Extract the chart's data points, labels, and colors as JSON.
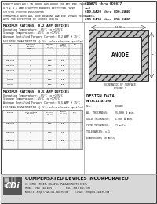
{
  "bg_color": "#ffffff",
  "border_color": "#444444",
  "title_lines": [
    "DIRECT AVAILABLE IN A0808 AND A0808 FOR MIL-PRF-19500/495",
    "0.2 & 0.5 AMP SCHOTTKY BARRIER RECTIFIER CHIPS",
    "SILICON DIOXIDE PASSIVATED",
    "COMPATIBLE WITH ALL WIRE BONDING AND DIE ATTACH TECHNIQUES,",
    "WITH THE EXCEPTION OF SOLDER REFLOW"
  ],
  "right_header_lines": [
    "CD0875 thru CD0877",
    "and",
    "CD0.5A20 thru CD0.2A40",
    "and",
    "CD0.5A20 thru CD0.5A40"
  ],
  "section1_title": "MAXIMUM RATINGS, 0.2 AMP DEVICES",
  "section1_lines": [
    "Operating Temperature: -65°C to +125°C",
    "Storage Temperature: -65°C to +175°C",
    "Average Rectified Forward Current: 0.2 AMP @ 75°C"
  ],
  "table1_header": "ELECTRICAL CHARACTERISTICS (@ 25°C, unless otherwise specified)",
  "section2_title": "MAXIMUM RATINGS, 0.5 AMP DEVICES",
  "section2_lines": [
    "Operating Temperature: -65°C to +125°C",
    "Storage Temperature: -65°C to +175°C",
    "Average Rectified Forward Current: 0.5 AMP @ 75°C"
  ],
  "table2_header": "ELECTRICAL CHARACTERISTICS (@ 25°C, unless otherwise specified)",
  "design_data_title": "DESIGN DATA",
  "design_data_subtitle": "METALLIZATION",
  "chip_label": "ANODE",
  "figure_label": "SCHEMATIC OF SURFACE",
  "figure_num": "FIGURE 1",
  "company_name": "COMPENSATED DEVICES INCORPORATED",
  "company_address": "33 COREY STREET, MELROSE, MASSACHUSETTS 02176",
  "company_phone": "PHONE: (781) 662-1071           FAX: (781) 662-7378",
  "company_web": "WEBSITE: http://www.cdi-diodes.com     E-MAIL: info@cdi-diodes.com",
  "divider_color": "#999999",
  "text_color": "#111111",
  "table_border_color": "#666666",
  "footer_bg": "#e8e8e8"
}
